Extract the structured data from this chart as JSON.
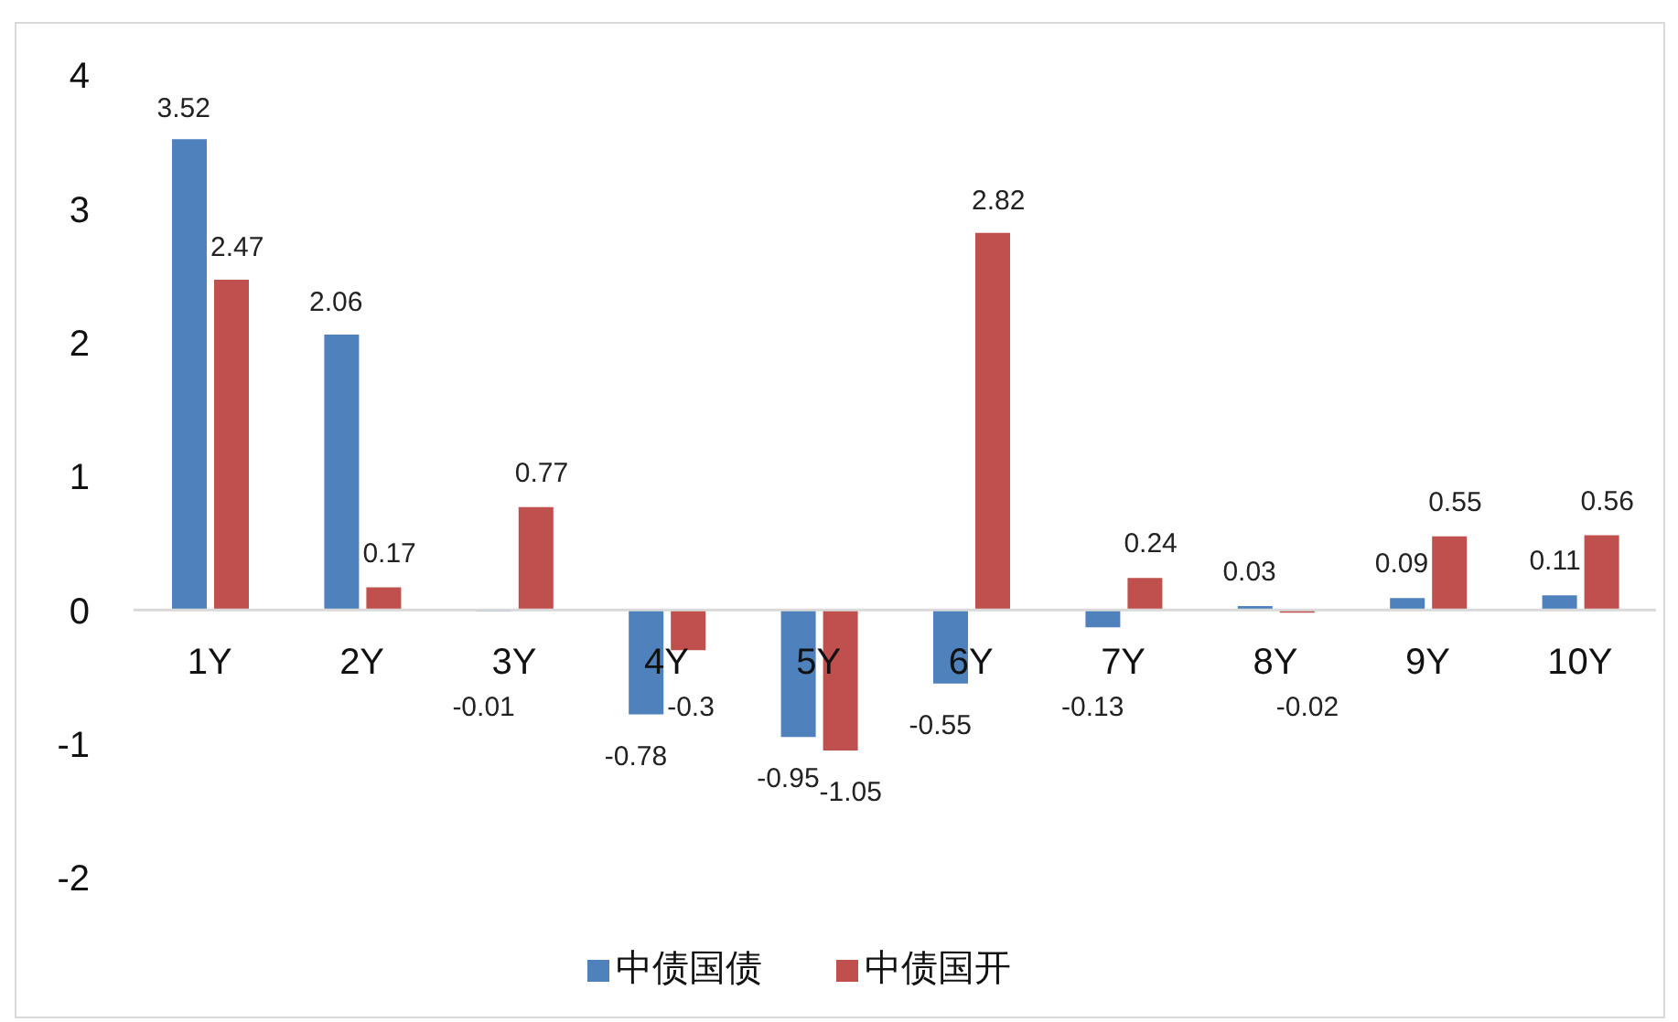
{
  "chart_data": {
    "type": "bar",
    "categories": [
      "1Y",
      "2Y",
      "3Y",
      "4Y",
      "5Y",
      "6Y",
      "7Y",
      "8Y",
      "9Y",
      "10Y"
    ],
    "series": [
      {
        "name": "中债国债",
        "color": "#4f81bd",
        "values": [
          3.52,
          2.06,
          -0.01,
          -0.78,
          -0.95,
          -0.55,
          -0.13,
          0.03,
          0.09,
          0.11
        ]
      },
      {
        "name": "中债国开",
        "color": "#c0504d",
        "values": [
          2.47,
          0.17,
          0.77,
          -0.3,
          -1.05,
          2.82,
          0.24,
          -0.02,
          0.55,
          0.56
        ]
      }
    ],
    "ylim": [
      -2,
      4
    ],
    "yticks": [
      -2,
      -1,
      0,
      1,
      2,
      3,
      4
    ],
    "legend": "bottom",
    "data_labels": true
  }
}
